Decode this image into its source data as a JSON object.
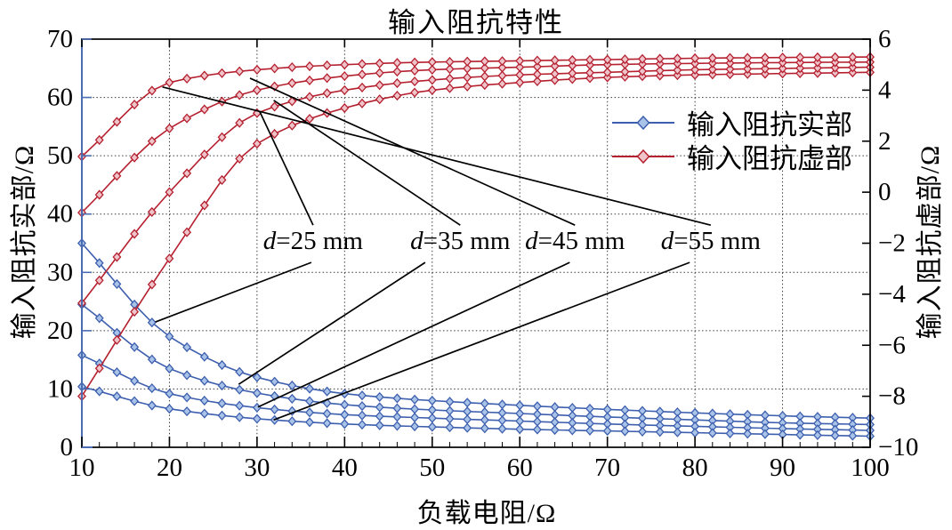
{
  "title": "输入阻抗特性",
  "axes": {
    "x": {
      "label": "负载电阻/Ω",
      "min": 10,
      "max": 100,
      "tick_labels": [
        "10",
        "20",
        "30",
        "40",
        "50",
        "60",
        "70",
        "80",
        "90",
        "100"
      ],
      "minor_step": 2
    },
    "y_left": {
      "label": "输入阻抗实部/Ω",
      "min": 0,
      "max": 70,
      "tick_labels": [
        "0",
        "10",
        "20",
        "30",
        "40",
        "50",
        "60",
        "70"
      ]
    },
    "y_right": {
      "label": "输入阻抗虚部/Ω",
      "min": -10,
      "max": 6,
      "tick_labels": [
        "−10",
        "−8",
        "−6",
        "−4",
        "−2",
        "0",
        "2",
        "4",
        "6"
      ]
    }
  },
  "legend": {
    "position": "upper-right-inside",
    "items": [
      {
        "label": "输入阻抗实部",
        "series": "real",
        "marker": "diamond"
      },
      {
        "label": "输入阻抗虚部",
        "series": "imag",
        "marker": "diamond"
      }
    ]
  },
  "colors": {
    "real_line": "#3d5fae",
    "real_fill": "#a9c3e8",
    "imag_line": "#b5202f",
    "imag_fill": "#eec3c9",
    "grid": "#3a3a3a",
    "frame": "#000000",
    "left_spine": "#4a6cb3",
    "annotation_line": "#000000"
  },
  "chart_data": {
    "type": "line",
    "title": "输入阻抗特性",
    "xlabel": "负载电阻/Ω",
    "ylabel_left": "输入阻抗实部/Ω",
    "ylabel_right": "输入阻抗虚部/Ω",
    "x_range": [
      10,
      100
    ],
    "y_left_range": [
      0,
      70
    ],
    "y_right_range": [
      -10,
      6
    ],
    "grid": "dotted",
    "marker": "diamond",
    "marker_step": 2,
    "x_anchors": [
      10,
      20,
      30,
      40,
      50,
      60,
      70,
      80,
      90,
      100
    ],
    "series": [
      {
        "name": "输入阻抗实部",
        "d_mm": 25,
        "axis": "left",
        "values": [
          35.0,
          19.0,
          12.0,
          9.2,
          8.0,
          7.2,
          6.5,
          5.9,
          5.4,
          5.0
        ]
      },
      {
        "name": "输入阻抗实部",
        "d_mm": 35,
        "axis": "left",
        "values": [
          24.5,
          13.5,
          9.3,
          7.3,
          6.4,
          5.8,
          5.2,
          4.7,
          4.2,
          3.9
        ]
      },
      {
        "name": "输入阻抗实部",
        "d_mm": 45,
        "axis": "left",
        "values": [
          15.8,
          9.2,
          6.8,
          5.6,
          5.0,
          4.5,
          4.0,
          3.6,
          3.2,
          2.9
        ]
      },
      {
        "name": "输入阻抗实部",
        "d_mm": 55,
        "axis": "left",
        "values": [
          10.4,
          6.6,
          4.9,
          4.0,
          3.5,
          3.1,
          2.8,
          2.5,
          2.2,
          1.9
        ]
      },
      {
        "name": "输入阻抗虚部",
        "d_mm": 25,
        "axis": "right",
        "values": [
          -8.0,
          -2.6,
          1.9,
          3.3,
          4.0,
          4.3,
          4.5,
          4.6,
          4.65,
          4.7
        ]
      },
      {
        "name": "输入阻抗虚部",
        "d_mm": 35,
        "axis": "right",
        "values": [
          -4.35,
          0.0,
          3.1,
          4.0,
          4.4,
          4.6,
          4.7,
          4.8,
          4.85,
          4.9
        ]
      },
      {
        "name": "输入阻抗虚部",
        "d_mm": 45,
        "axis": "right",
        "values": [
          -0.8,
          2.5,
          4.0,
          4.55,
          4.8,
          4.9,
          5.0,
          5.05,
          5.08,
          5.1
        ]
      },
      {
        "name": "输入阻抗虚部",
        "d_mm": 55,
        "axis": "right",
        "values": [
          1.4,
          4.3,
          4.8,
          5.0,
          5.1,
          5.15,
          5.2,
          5.25,
          5.28,
          5.3
        ]
      }
    ],
    "annotations": [
      {
        "label": "d=25 mm",
        "label_x": 36.4,
        "label_y": 35.4,
        "leaders": [
          {
            "x1": 36.4,
            "y1": 38.1,
            "x2": 30.3,
            "y2": 57.6
          },
          {
            "x1": 36.2,
            "y1": 31.7,
            "x2": 18.4,
            "y2": 21.5
          }
        ]
      },
      {
        "label": "d=35 mm",
        "label_x": 53.2,
        "label_y": 35.4,
        "leaders": [
          {
            "x1": 53.2,
            "y1": 38.1,
            "x2": 31.9,
            "y2": 59.5
          },
          {
            "x1": 49.2,
            "y1": 31.7,
            "x2": 27.9,
            "y2": 10.8
          }
        ]
      },
      {
        "label": "d=45 mm",
        "label_x": 66.3,
        "label_y": 35.4,
        "leaders": [
          {
            "x1": 66.3,
            "y1": 38.1,
            "x2": 29.2,
            "y2": 63.3
          },
          {
            "x1": 65.7,
            "y1": 31.7,
            "x2": 30.1,
            "y2": 6.9
          }
        ]
      },
      {
        "label": "d=55 mm",
        "label_x": 81.8,
        "label_y": 35.4,
        "leaders": [
          {
            "x1": 81.8,
            "y1": 38.1,
            "x2": 19.2,
            "y2": 61.8
          },
          {
            "x1": 79.4,
            "y1": 31.7,
            "x2": 31.9,
            "y2": 4.7
          }
        ]
      }
    ]
  }
}
